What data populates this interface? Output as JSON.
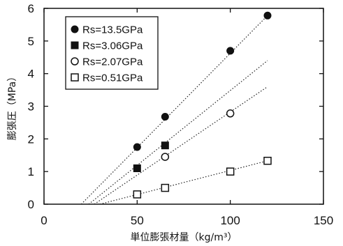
{
  "chart_data": {
    "type": "scatter",
    "title": "",
    "xlabel": "単位膨張材量（kg/m³）",
    "ylabel": "膨張圧（MPa）",
    "xlim": [
      0,
      150
    ],
    "ylim": [
      0,
      6
    ],
    "xticks": [
      "0",
      "50",
      "100",
      "150"
    ],
    "yticks": [
      "0",
      "1",
      "2",
      "3",
      "4",
      "5",
      "6"
    ],
    "grid": false,
    "legend_position": "top-left",
    "series": [
      {
        "name": "Rs=13.5GPa",
        "marker": "filled-circle",
        "x": [
          50,
          65,
          100,
          120
        ],
        "y": [
          1.75,
          2.68,
          4.7,
          5.78
        ],
        "trend": [
          [
            20,
            0
          ],
          [
            120,
            5.78
          ]
        ]
      },
      {
        "name": "Rs=3.06GPa",
        "marker": "filled-square",
        "x": [
          50,
          65
        ],
        "y": [
          1.1,
          1.8
        ],
        "trend": [
          [
            24,
            0
          ],
          [
            120,
            4.4
          ]
        ]
      },
      {
        "name": "Rs=2.07GPa",
        "marker": "open-circle",
        "x": [
          65,
          100
        ],
        "y": [
          1.45,
          2.78
        ],
        "trend": [
          [
            27,
            0
          ],
          [
            120,
            3.6
          ]
        ]
      },
      {
        "name": "Rs=0.51GPa",
        "marker": "open-square",
        "x": [
          50,
          65,
          100,
          120
        ],
        "y": [
          0.3,
          0.5,
          1.0,
          1.33
        ],
        "trend": [
          [
            30,
            0
          ],
          [
            120,
            1.33
          ]
        ]
      }
    ]
  }
}
